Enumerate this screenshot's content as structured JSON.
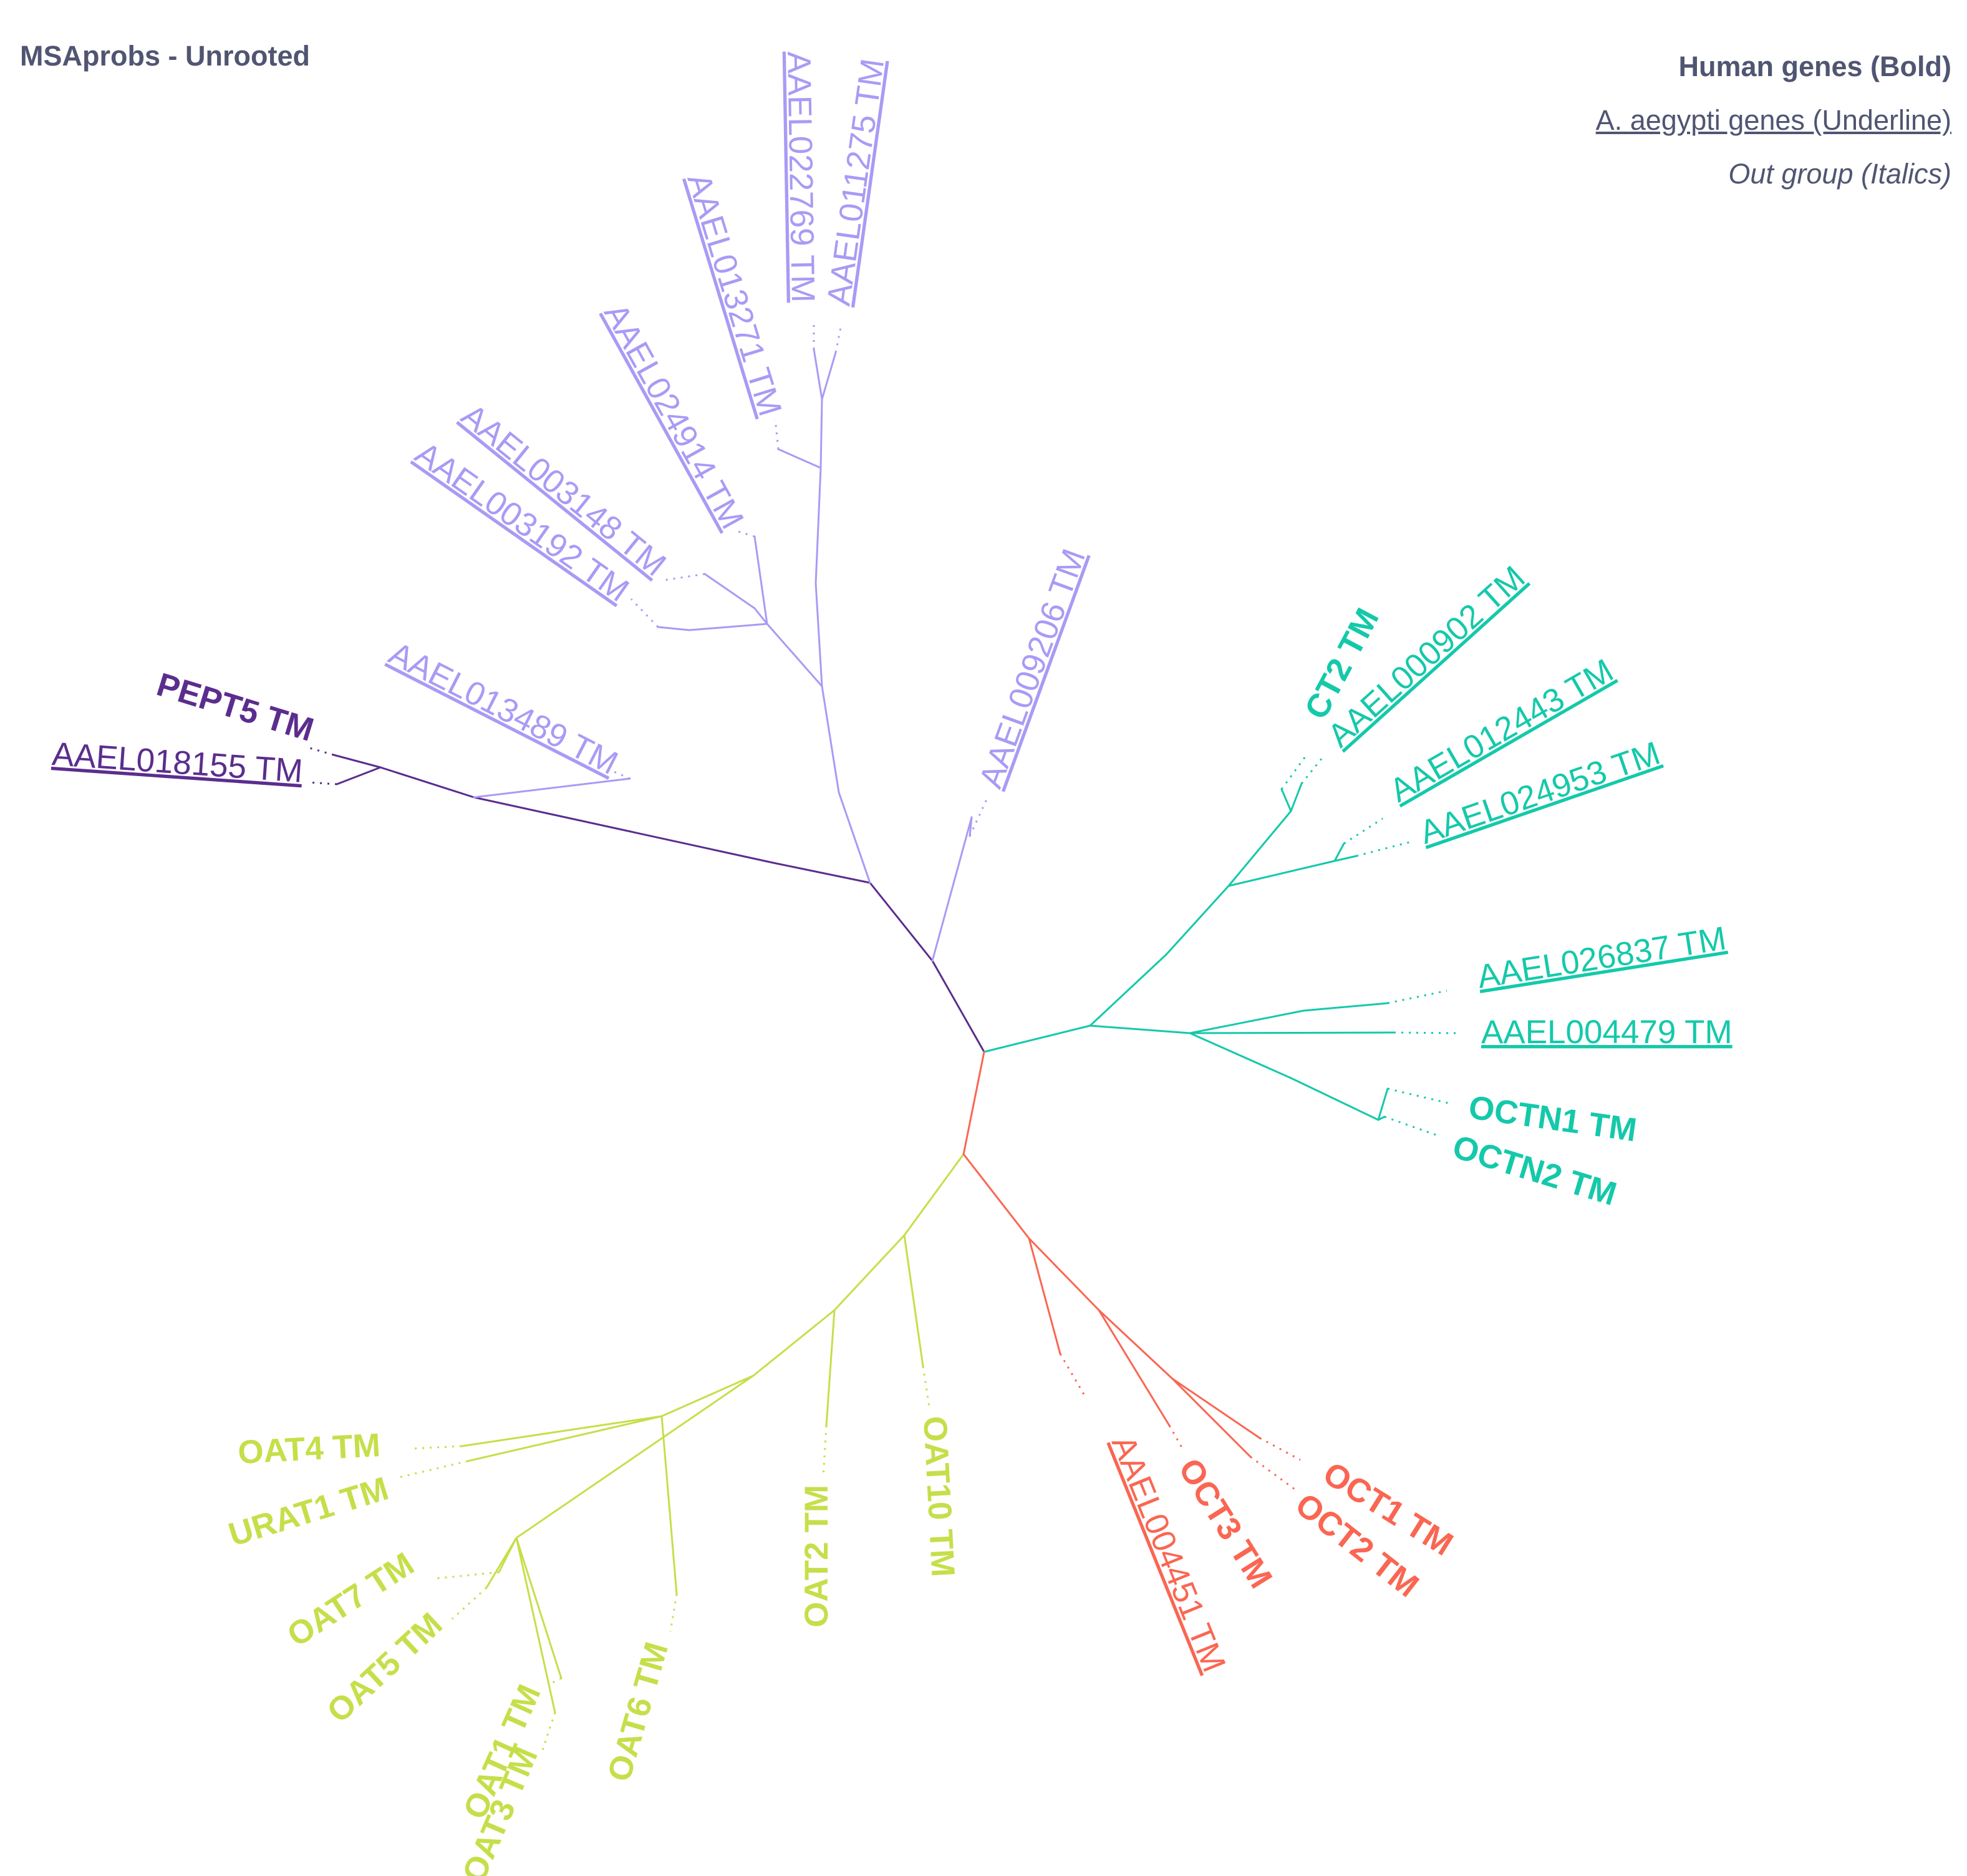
{
  "title": "MSAprobs - Unrooted",
  "legend": {
    "bold": "Human genes (Bold)",
    "underline": "A. aegypti genes (Underline)",
    "italic": "Out group (Italics)"
  },
  "colors": {
    "purple_dark": "#5b2d8e",
    "lavender": "#a89bf5",
    "teal": "#14c9aa",
    "coral": "#fa6652",
    "lime": "#c5df4a"
  },
  "taxa": [
    {
      "id": "pept5",
      "label": "PEPT5 TM",
      "style": "bold",
      "group": "purple_dark"
    },
    {
      "id": "aael018155",
      "label": "AAEL018155 TM",
      "style": "underline",
      "group": "purple_dark"
    },
    {
      "id": "aael013489",
      "label": "AAEL013489 TM",
      "style": "underline",
      "group": "lavender"
    },
    {
      "id": "aael003192",
      "label": "AAEL003192 TM",
      "style": "underline",
      "group": "lavender"
    },
    {
      "id": "aael003148",
      "label": "AAEL003148 TM",
      "style": "underline",
      "group": "lavender"
    },
    {
      "id": "aael024914",
      "label": "AAEL024914 TM",
      "style": "underline",
      "group": "lavender"
    },
    {
      "id": "aael013271",
      "label": "AAEL013271 TM",
      "style": "underline",
      "group": "lavender"
    },
    {
      "id": "aael022769",
      "label": "AAEL022769 TM",
      "style": "underline",
      "group": "lavender"
    },
    {
      "id": "aael011275",
      "label": "AAEL011275 TM",
      "style": "underline",
      "group": "lavender"
    },
    {
      "id": "aael009206",
      "label": "AAEL009206 TM",
      "style": "underline",
      "group": "lavender"
    },
    {
      "id": "ct2",
      "label": "CT2 TM",
      "style": "bold",
      "group": "teal"
    },
    {
      "id": "aael000902",
      "label": "AAEL000902 TM",
      "style": "underline",
      "group": "teal"
    },
    {
      "id": "aael012443",
      "label": "AAEL012443 TM",
      "style": "underline",
      "group": "teal"
    },
    {
      "id": "aael024953",
      "label": "AAEL024953 TM",
      "style": "underline",
      "group": "teal"
    },
    {
      "id": "aael026837",
      "label": "AAEL026837 TM",
      "style": "underline",
      "group": "teal"
    },
    {
      "id": "aael004479",
      "label": "AAEL004479 TM",
      "style": "underline",
      "group": "teal"
    },
    {
      "id": "octn1",
      "label": "OCTN1 TM",
      "style": "bold",
      "group": "teal"
    },
    {
      "id": "octn2",
      "label": "OCTN2 TM",
      "style": "bold",
      "group": "teal"
    },
    {
      "id": "oct1",
      "label": "OCT1 TM",
      "style": "bold",
      "group": "coral"
    },
    {
      "id": "oct2",
      "label": "OCT2 TM",
      "style": "bold",
      "group": "coral"
    },
    {
      "id": "oct3",
      "label": "OCT3 TM",
      "style": "bold",
      "group": "coral"
    },
    {
      "id": "aael004451",
      "label": "AAEL004451 TM",
      "style": "underline",
      "group": "coral"
    },
    {
      "id": "oat10",
      "label": "OAT10 TM",
      "style": "bold",
      "group": "lime"
    },
    {
      "id": "oat2",
      "label": "OAT2 TM",
      "style": "bold",
      "group": "lime"
    },
    {
      "id": "oat6",
      "label": "OAT6 TM",
      "style": "bold",
      "group": "lime"
    },
    {
      "id": "oat3",
      "label": "OAT3 TM",
      "style": "bold",
      "group": "lime"
    },
    {
      "id": "oat1",
      "label": "OAT1 TM",
      "style": "bold",
      "group": "lime"
    },
    {
      "id": "oat5",
      "label": "OAT5 TM",
      "style": "bold",
      "group": "lime"
    },
    {
      "id": "oat7",
      "label": "OAT7 TM",
      "style": "bold",
      "group": "lime"
    },
    {
      "id": "urat1",
      "label": "URAT1 TM",
      "style": "bold",
      "group": "lime"
    },
    {
      "id": "oat4",
      "label": "OAT4 TM",
      "style": "bold",
      "group": "lime"
    }
  ]
}
